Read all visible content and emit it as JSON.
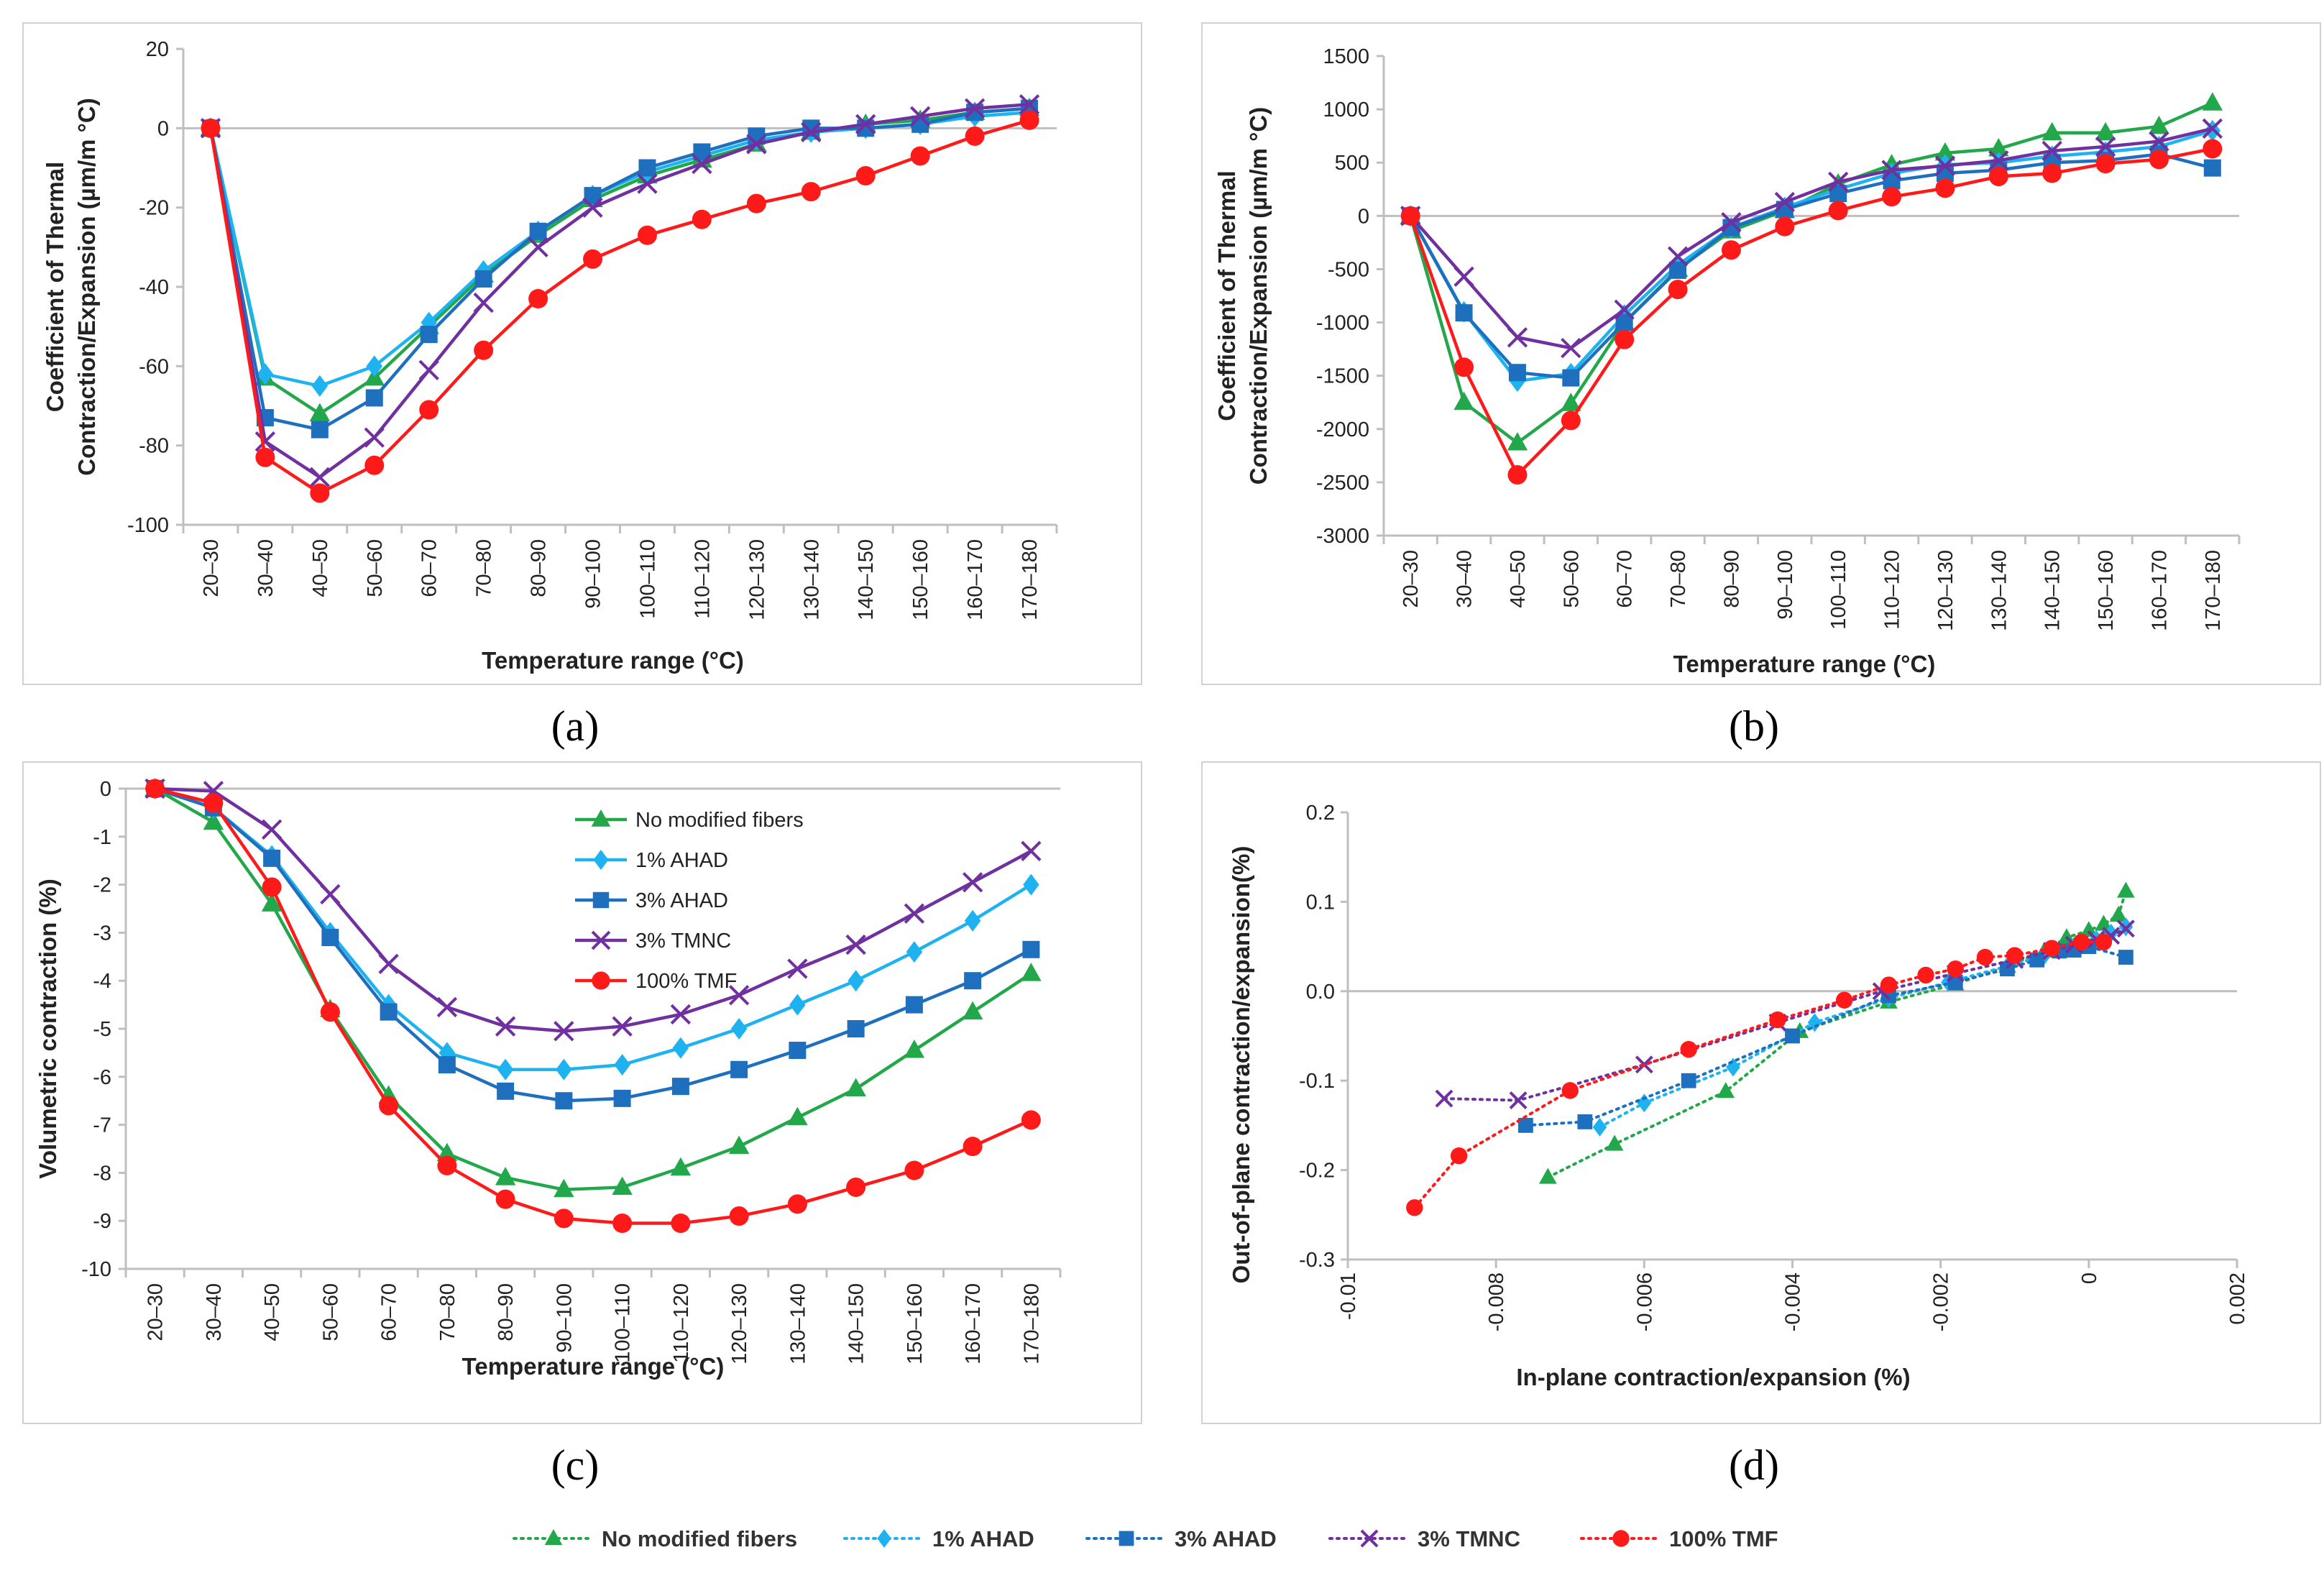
{
  "colors": {
    "No modified fibers": "#22a84a",
    "1% AHAD": "#1eb3f0",
    "3% AHAD": "#1f6fbf",
    "3% TMNC": "#7030a0",
    "100% TMF": "#ff1a1a"
  },
  "panel_labels": {
    "a": "(a)",
    "b": "(b)",
    "c": "(c)",
    "d": "(d)"
  },
  "bottom_legend": [
    "No modified fibers",
    "1% AHAD",
    "3% AHAD",
    "3% TMNC",
    "100% TMF"
  ],
  "chart_data": [
    {
      "id": "a",
      "type": "line",
      "xlabel": "Temperature range (°C)",
      "ylabel_line1": "Coefficient of Thermal",
      "ylabel_line2": "Contraction/Expansion  (µm/m °C)",
      "ylim": [
        -100,
        20
      ],
      "yticks": [
        20,
        0,
        -20,
        -40,
        -60,
        -80,
        -100
      ],
      "categories": [
        "20–30",
        "30–40",
        "40–50",
        "50–60",
        "60–70",
        "70–80",
        "80–90",
        "90–100",
        "100–110",
        "110–120",
        "120–130",
        "130–140",
        "140–150",
        "150–160",
        "160–170",
        "170–180"
      ],
      "series": [
        {
          "name": "No modified fibers",
          "marker": "triangle",
          "values": [
            0,
            -63,
            -72,
            -63,
            -50,
            -37,
            -27,
            -18,
            -12,
            -8,
            -4,
            -1,
            1,
            2,
            4,
            5
          ]
        },
        {
          "name": "1% AHAD",
          "marker": "diamond",
          "values": [
            0,
            -62,
            -65,
            -60,
            -49,
            -36,
            -26,
            -17,
            -11,
            -7,
            -3,
            -1,
            0,
            1,
            3,
            4
          ]
        },
        {
          "name": "3% AHAD",
          "marker": "square",
          "values": [
            0,
            -73,
            -76,
            -68,
            -52,
            -38,
            -26,
            -17,
            -10,
            -6,
            -2,
            0,
            0,
            1,
            4,
            5
          ]
        },
        {
          "name": "3% TMNC",
          "marker": "x",
          "values": [
            0,
            -79,
            -88,
            -78,
            -61,
            -44,
            -30,
            -20,
            -14,
            -9,
            -4,
            -1,
            1,
            3,
            5,
            6
          ]
        },
        {
          "name": "100% TMF",
          "marker": "circle",
          "values": [
            0,
            -83,
            -92,
            -85,
            -71,
            -56,
            -43,
            -33,
            -27,
            -23,
            -19,
            -16,
            -12,
            -7,
            -2,
            2
          ]
        }
      ]
    },
    {
      "id": "b",
      "type": "line",
      "xlabel": "Temperature range (°C)",
      "ylabel_line1": "Coefficient of Thermal",
      "ylabel_line2": "Contraction/Expansion  (µm/m °C)",
      "ylim": [
        -3000,
        1500
      ],
      "yticks": [
        1500,
        1000,
        500,
        0,
        -500,
        -1000,
        -1500,
        -2000,
        -2500,
        -3000
      ],
      "categories": [
        "20–30",
        "30–40",
        "40–50",
        "50–60",
        "60–70",
        "70–80",
        "80–90",
        "90–100",
        "100–110",
        "110–120",
        "120–130",
        "130–140",
        "140–150",
        "150–160",
        "160–170",
        "170–180"
      ],
      "series": [
        {
          "name": "No modified fibers",
          "marker": "triangle",
          "values": [
            0,
            -1750,
            -2130,
            -1760,
            -1000,
            -500,
            -140,
            50,
            300,
            480,
            590,
            630,
            780,
            780,
            840,
            1060
          ]
        },
        {
          "name": "1% AHAD",
          "marker": "diamond",
          "values": [
            0,
            -900,
            -1550,
            -1480,
            -930,
            -460,
            -110,
            80,
            250,
            400,
            480,
            500,
            560,
            600,
            650,
            800
          ]
        },
        {
          "name": "3% AHAD",
          "marker": "square",
          "values": [
            0,
            -910,
            -1470,
            -1520,
            -1000,
            -510,
            -110,
            60,
            210,
            330,
            400,
            430,
            500,
            520,
            580,
            450
          ]
        },
        {
          "name": "3% TMNC",
          "marker": "x",
          "values": [
            0,
            -570,
            -1140,
            -1240,
            -880,
            -380,
            -60,
            130,
            320,
            430,
            470,
            520,
            610,
            650,
            700,
            820
          ]
        },
        {
          "name": "100% TMF",
          "marker": "circle",
          "values": [
            0,
            -1420,
            -2430,
            -1920,
            -1160,
            -690,
            -320,
            -100,
            50,
            180,
            260,
            370,
            400,
            490,
            530,
            630
          ]
        }
      ]
    },
    {
      "id": "c",
      "type": "line",
      "xlabel": "Temperature range (°C)",
      "ylabel": "Volumetric contraction (%)",
      "ylim": [
        -10,
        0
      ],
      "yticks": [
        0,
        -1,
        -2,
        -3,
        -4,
        -5,
        -6,
        -7,
        -8,
        -9,
        -10
      ],
      "legend_position": "top-center",
      "categories": [
        "20–30",
        "30–40",
        "40–50",
        "50–60",
        "60–70",
        "70–80",
        "80–90",
        "90–100",
        "100–110",
        "110–120",
        "120–130",
        "130–140",
        "140–150",
        "150–160",
        "160–170",
        "170–180"
      ],
      "series": [
        {
          "name": "No modified fibers",
          "marker": "triangle",
          "values": [
            0,
            -0.7,
            -2.4,
            -4.6,
            -6.4,
            -7.6,
            -8.1,
            -8.35,
            -8.3,
            -7.9,
            -7.45,
            -6.85,
            -6.25,
            -5.45,
            -4.65,
            -3.85
          ]
        },
        {
          "name": "1% AHAD",
          "marker": "diamond",
          "values": [
            0,
            -0.4,
            -1.4,
            -3.0,
            -4.5,
            -5.5,
            -5.85,
            -5.85,
            -5.75,
            -5.4,
            -5.0,
            -4.5,
            -4.0,
            -3.4,
            -2.75,
            -2.0
          ]
        },
        {
          "name": "3% AHAD",
          "marker": "square",
          "values": [
            0,
            -0.4,
            -1.45,
            -3.1,
            -4.65,
            -5.75,
            -6.3,
            -6.5,
            -6.45,
            -6.2,
            -5.85,
            -5.45,
            -5.0,
            -4.5,
            -4.0,
            -3.35
          ]
        },
        {
          "name": "3% TMNC",
          "marker": "x",
          "values": [
            0,
            -0.05,
            -0.85,
            -2.2,
            -3.65,
            -4.55,
            -4.95,
            -5.05,
            -4.95,
            -4.7,
            -4.3,
            -3.75,
            -3.25,
            -2.6,
            -1.95,
            -1.3
          ]
        },
        {
          "name": "100% TMF",
          "marker": "circle",
          "values": [
            0,
            -0.3,
            -2.05,
            -4.65,
            -6.6,
            -7.85,
            -8.55,
            -8.95,
            -9.05,
            -9.05,
            -8.9,
            -8.65,
            -8.3,
            -7.95,
            -7.45,
            -6.9
          ]
        }
      ]
    },
    {
      "id": "d",
      "type": "scatter",
      "xlabel": "In-plane contraction/expansion  (%)",
      "ylabel": "Out-of-plane contraction/expansion(%)",
      "xlim": [
        -0.01,
        0.002
      ],
      "ylim": [
        -0.3,
        0.2
      ],
      "xticks": [
        -0.01,
        -0.008,
        -0.006,
        -0.004,
        -0.002,
        0,
        0.002
      ],
      "xtick_labels": [
        "-0.01",
        "-0.008",
        "-0.006",
        "-0.004",
        "-0.002",
        "0",
        "0.002"
      ],
      "yticks": [
        0.2,
        0.1,
        0.0,
        -0.1,
        -0.2,
        -0.3
      ],
      "ytick_labels": [
        "0.2",
        "0.1",
        "0.0",
        "-0.1",
        "-0.2",
        "-0.3"
      ],
      "series": [
        {
          "name": "No modified fibers",
          "marker": "triangle",
          "x": [
            -0.0073,
            -0.0064,
            -0.0049,
            -0.0039,
            -0.0027,
            -0.0018,
            -0.0011,
            -0.0006,
            -0.0003,
            0.0,
            0.0002,
            0.0004,
            0.0005
          ],
          "y": [
            -0.208,
            -0.171,
            -0.112,
            -0.045,
            -0.012,
            0.008,
            0.028,
            0.045,
            0.06,
            0.068,
            0.075,
            0.085,
            0.112
          ]
        },
        {
          "name": "1% AHAD",
          "marker": "diamond",
          "x": [
            -0.0066,
            -0.006,
            -0.0048,
            -0.0037,
            -0.0027,
            -0.0019,
            -0.0011,
            -0.0006,
            -0.0002,
            0.0001,
            0.0003,
            0.0005
          ],
          "y": [
            -0.152,
            -0.125,
            -0.085,
            -0.035,
            -0.008,
            0.01,
            0.028,
            0.04,
            0.05,
            0.058,
            0.065,
            0.072
          ]
        },
        {
          "name": "3% AHAD",
          "marker": "square",
          "x": [
            -0.0076,
            -0.0068,
            -0.0054,
            -0.004,
            -0.0027,
            -0.0018,
            -0.0011,
            -0.0007,
            -0.0004,
            -0.0002,
            0.0,
            0.0005
          ],
          "y": [
            -0.15,
            -0.146,
            -0.1,
            -0.05,
            -0.005,
            0.01,
            0.025,
            0.035,
            0.045,
            0.046,
            0.05,
            0.038
          ]
        },
        {
          "name": "3% TMNC",
          "marker": "x",
          "x": [
            -0.0087,
            -0.0077,
            -0.006,
            -0.0042,
            -0.0028,
            -0.0018,
            -0.001,
            -0.0005,
            -0.0002,
            0.0001,
            0.0003,
            0.0005
          ],
          "y": [
            -0.12,
            -0.122,
            -0.082,
            -0.035,
            0.0,
            0.02,
            0.035,
            0.045,
            0.052,
            0.058,
            0.062,
            0.07
          ]
        },
        {
          "name": "100% TMF",
          "marker": "circle",
          "x": [
            -0.0091,
            -0.0085,
            -0.007,
            -0.0054,
            -0.0042,
            -0.0033,
            -0.0027,
            -0.0022,
            -0.0018,
            -0.0014,
            -0.001,
            -0.0005,
            -0.0001,
            0.0002
          ],
          "y": [
            -0.242,
            -0.184,
            -0.111,
            -0.065,
            -0.032,
            -0.01,
            0.007,
            0.018,
            0.025,
            0.038,
            0.04,
            0.048,
            0.055,
            0.055
          ]
        }
      ]
    }
  ]
}
